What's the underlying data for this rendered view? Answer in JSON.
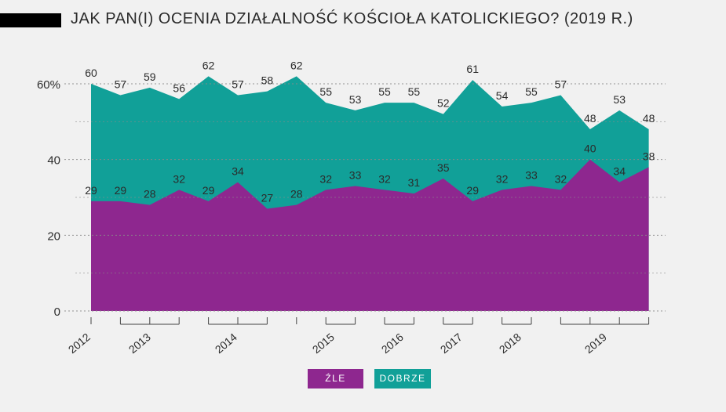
{
  "title": "JAK PAN(I) OCENIA DZIAŁALNOŚĆ KOŚCIOŁA KATOLICKIEGO? (2019 R.)",
  "chart_data": {
    "type": "area",
    "title": "JAK PAN(I) OCENIA DZIAŁALNOŚĆ KOŚCIOŁA KATOLICKIEGO? (2019 R.)",
    "xlabel": "",
    "ylabel": "",
    "ylim": [
      0,
      60
    ],
    "y_ticks": [
      0,
      20,
      40,
      60
    ],
    "y_tick_labels": [
      "0",
      "20",
      "40",
      "60%"
    ],
    "grid": true,
    "legend_position": "bottom-center",
    "x_ticks": [
      "2012",
      "2013",
      "2014",
      "2015",
      "2016",
      "2017",
      "2018",
      "2019"
    ],
    "series": [
      {
        "name": "ŹLE",
        "color": "#8e278f",
        "values": [
          29,
          29,
          28,
          32,
          29,
          34,
          27,
          28,
          32,
          33,
          32,
          31,
          35,
          29,
          32,
          33,
          32,
          40,
          34,
          38
        ]
      },
      {
        "name": "DOBRZE",
        "color": "#11a098",
        "values": [
          60,
          57,
          59,
          56,
          62,
          57,
          58,
          62,
          55,
          53,
          55,
          55,
          52,
          61,
          54,
          55,
          57,
          48,
          53,
          48
        ]
      }
    ]
  }
}
